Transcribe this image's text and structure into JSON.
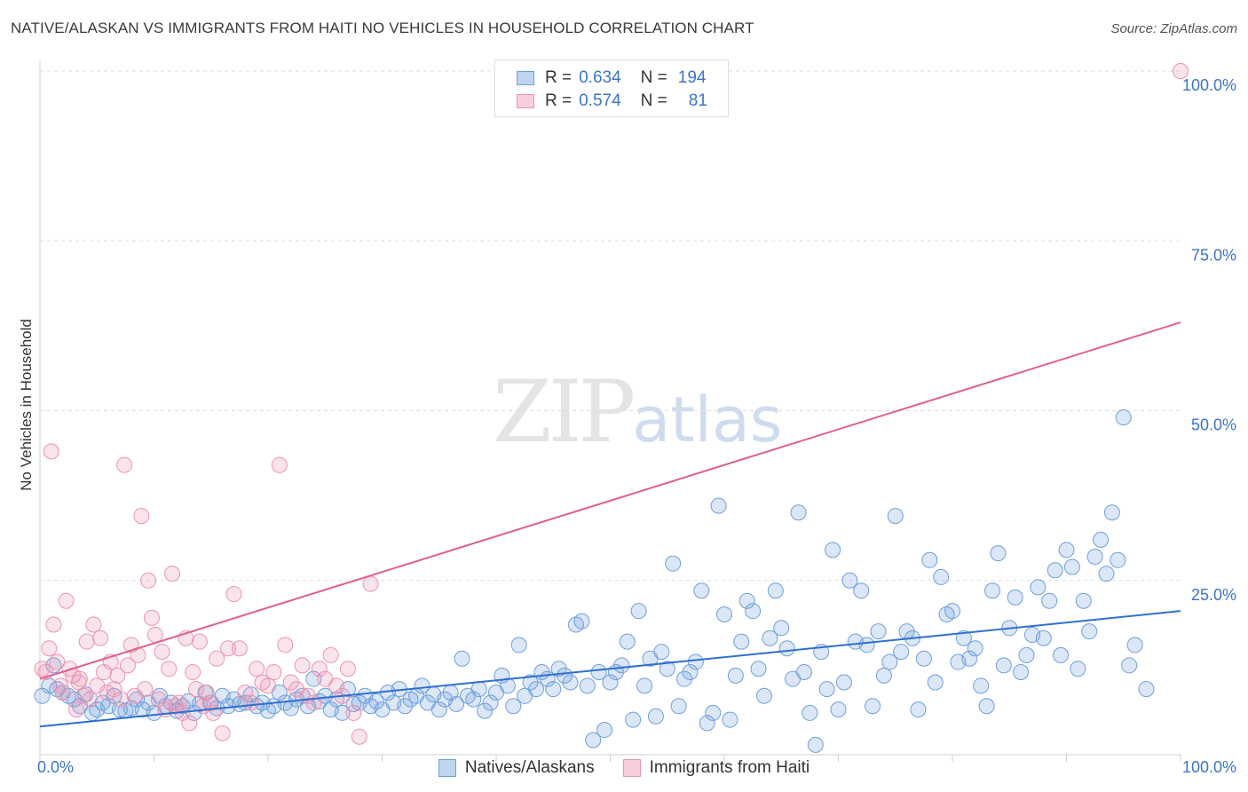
{
  "header": {
    "title": "NATIVE/ALASKAN VS IMMIGRANTS FROM HAITI NO VEHICLES IN HOUSEHOLD CORRELATION CHART",
    "source": "Source: ZipAtlas.com"
  },
  "watermark": {
    "zip": "ZIP",
    "atlas": "atlas"
  },
  "legend": {
    "rows": [
      {
        "r_label": "R =",
        "r_value": "0.634",
        "n_label": "N =",
        "n_value": "194"
      },
      {
        "r_label": "R =",
        "r_value": "0.574",
        "n_label": "N =",
        "n_value": "81"
      }
    ]
  },
  "chart_data": {
    "type": "scatter",
    "xlabel": "",
    "ylabel": "No Vehicles in Household",
    "xlim": [
      0,
      100
    ],
    "ylim": [
      0,
      100
    ],
    "x_tick_labels": [
      "0.0%",
      "100.0%"
    ],
    "y_tick_labels": [
      "25.0%",
      "50.0%",
      "75.0%",
      "100.0%"
    ],
    "y_ticks": [
      25,
      50,
      75,
      100
    ],
    "grid": true,
    "legend_placement": "top-center and bottom",
    "series": [
      {
        "name": "Natives/Alaskans",
        "color": "#6f9fdc",
        "fill": "rgba(111,159,220,0.25)",
        "line_color": "#2f6fd1",
        "trend": {
          "x": [
            0,
            100
          ],
          "y": [
            3.5,
            20.5
          ]
        },
        "points": [
          [
            0.2,
            8.0
          ],
          [
            0.8,
            9.5
          ],
          [
            1.2,
            12.5
          ],
          [
            1.5,
            9.0
          ],
          [
            2.0,
            8.5
          ],
          [
            2.5,
            8.0
          ],
          [
            3.0,
            7.5
          ],
          [
            3.5,
            6.5
          ],
          [
            4.0,
            8.2
          ],
          [
            4.6,
            5.5
          ],
          [
            5.0,
            6.0
          ],
          [
            5.5,
            7.0
          ],
          [
            6.0,
            6.5
          ],
          [
            6.5,
            8.0
          ],
          [
            7.0,
            6.0
          ],
          [
            7.5,
            5.8
          ],
          [
            8.0,
            6.2
          ],
          [
            8.5,
            7.5
          ],
          [
            9.0,
            6.0
          ],
          [
            9.5,
            7.0
          ],
          [
            10.0,
            5.5
          ],
          [
            10.5,
            8.0
          ],
          [
            11.0,
            6.5
          ],
          [
            11.5,
            7.0
          ],
          [
            12.0,
            5.8
          ],
          [
            12.5,
            6.5
          ],
          [
            13.0,
            7.2
          ],
          [
            13.5,
            5.5
          ],
          [
            14.0,
            6.8
          ],
          [
            14.5,
            8.5
          ],
          [
            15.0,
            7.0
          ],
          [
            15.5,
            6.2
          ],
          [
            16.0,
            8.0
          ],
          [
            16.5,
            6.5
          ],
          [
            17.0,
            7.5
          ],
          [
            17.5,
            6.8
          ],
          [
            18.0,
            7.0
          ],
          [
            18.5,
            8.2
          ],
          [
            19.0,
            6.5
          ],
          [
            19.5,
            7.0
          ],
          [
            20.0,
            5.8
          ],
          [
            20.5,
            6.5
          ],
          [
            21.0,
            8.5
          ],
          [
            21.5,
            7.0
          ],
          [
            22.0,
            6.2
          ],
          [
            22.5,
            7.5
          ],
          [
            23.0,
            8.0
          ],
          [
            23.5,
            6.5
          ],
          [
            24.0,
            10.5
          ],
          [
            24.5,
            7.2
          ],
          [
            25.0,
            8.0
          ],
          [
            25.5,
            6.0
          ],
          [
            26.0,
            7.5
          ],
          [
            26.5,
            5.5
          ],
          [
            27.0,
            9.0
          ],
          [
            27.5,
            6.8
          ],
          [
            28.0,
            7.0
          ],
          [
            28.5,
            8.0
          ],
          [
            29.0,
            6.5
          ],
          [
            29.5,
            7.2
          ],
          [
            30.0,
            6.0
          ],
          [
            30.5,
            8.5
          ],
          [
            31.0,
            7.0
          ],
          [
            31.5,
            9.0
          ],
          [
            32.0,
            6.5
          ],
          [
            32.5,
            7.5
          ],
          [
            33.0,
            8.0
          ],
          [
            33.5,
            9.5
          ],
          [
            34.0,
            7.0
          ],
          [
            34.5,
            8.2
          ],
          [
            35.0,
            6.0
          ],
          [
            35.5,
            7.5
          ],
          [
            36.0,
            8.5
          ],
          [
            36.5,
            6.8
          ],
          [
            37.0,
            13.5
          ],
          [
            37.5,
            8.0
          ],
          [
            38.0,
            7.5
          ],
          [
            38.5,
            9.0
          ],
          [
            39.0,
            5.8
          ],
          [
            39.5,
            7.0
          ],
          [
            40.0,
            8.5
          ],
          [
            40.5,
            11.0
          ],
          [
            41.0,
            9.5
          ],
          [
            41.5,
            6.5
          ],
          [
            42.0,
            15.5
          ],
          [
            42.5,
            8.0
          ],
          [
            43.0,
            10.0
          ],
          [
            43.5,
            9.0
          ],
          [
            44.0,
            11.5
          ],
          [
            44.5,
            10.5
          ],
          [
            45.0,
            9.0
          ],
          [
            45.5,
            12.0
          ],
          [
            46.0,
            11.0
          ],
          [
            46.5,
            10.0
          ],
          [
            47.0,
            18.5
          ],
          [
            47.5,
            19.0
          ],
          [
            48.0,
            9.5
          ],
          [
            48.5,
            1.5
          ],
          [
            49.0,
            11.5
          ],
          [
            49.5,
            3.0
          ],
          [
            50.0,
            10.0
          ],
          [
            50.5,
            11.5
          ],
          [
            51.0,
            12.5
          ],
          [
            51.5,
            16.0
          ],
          [
            52.0,
            4.5
          ],
          [
            52.5,
            20.5
          ],
          [
            53.0,
            9.5
          ],
          [
            53.5,
            13.5
          ],
          [
            54.0,
            5.0
          ],
          [
            54.5,
            14.5
          ],
          [
            55.0,
            12.0
          ],
          [
            55.5,
            27.5
          ],
          [
            56.0,
            6.5
          ],
          [
            56.5,
            10.5
          ],
          [
            57.0,
            11.5
          ],
          [
            57.5,
            13.0
          ],
          [
            58.0,
            23.5
          ],
          [
            58.5,
            4.0
          ],
          [
            59.0,
            5.5
          ],
          [
            59.5,
            36.0
          ],
          [
            60.0,
            20.0
          ],
          [
            60.5,
            4.5
          ],
          [
            61.0,
            11.0
          ],
          [
            61.5,
            16.0
          ],
          [
            62.0,
            22.0
          ],
          [
            62.5,
            20.5
          ],
          [
            63.0,
            12.0
          ],
          [
            63.5,
            8.0
          ],
          [
            64.0,
            16.5
          ],
          [
            64.5,
            23.5
          ],
          [
            65.0,
            18.0
          ],
          [
            65.5,
            15.0
          ],
          [
            66.0,
            10.5
          ],
          [
            66.5,
            35.0
          ],
          [
            67.0,
            11.5
          ],
          [
            67.5,
            5.5
          ],
          [
            68.0,
            0.8
          ],
          [
            68.5,
            14.5
          ],
          [
            69.0,
            9.0
          ],
          [
            69.5,
            29.5
          ],
          [
            70.0,
            6.0
          ],
          [
            70.5,
            10.0
          ],
          [
            71.0,
            25.0
          ],
          [
            71.5,
            16.0
          ],
          [
            72.0,
            23.5
          ],
          [
            72.5,
            15.5
          ],
          [
            73.0,
            6.5
          ],
          [
            73.5,
            17.5
          ],
          [
            74.0,
            11.0
          ],
          [
            74.5,
            13.0
          ],
          [
            75.0,
            34.5
          ],
          [
            75.5,
            14.5
          ],
          [
            76.0,
            17.5
          ],
          [
            76.5,
            16.5
          ],
          [
            77.0,
            6.0
          ],
          [
            77.5,
            13.5
          ],
          [
            78.0,
            28.0
          ],
          [
            78.5,
            10.0
          ],
          [
            79.0,
            25.5
          ],
          [
            79.5,
            20.0
          ],
          [
            80.0,
            20.5
          ],
          [
            80.5,
            13.0
          ],
          [
            81.0,
            16.5
          ],
          [
            81.5,
            13.5
          ],
          [
            82.0,
            15.0
          ],
          [
            82.5,
            9.5
          ],
          [
            83.0,
            6.5
          ],
          [
            83.5,
            23.5
          ],
          [
            84.0,
            29.0
          ],
          [
            84.5,
            12.5
          ],
          [
            85.0,
            18.0
          ],
          [
            85.5,
            22.5
          ],
          [
            86.0,
            11.5
          ],
          [
            86.5,
            14.0
          ],
          [
            87.0,
            17.0
          ],
          [
            87.5,
            24.0
          ],
          [
            88.0,
            16.5
          ],
          [
            88.5,
            22.0
          ],
          [
            89.0,
            26.5
          ],
          [
            89.5,
            14.0
          ],
          [
            90.0,
            29.5
          ],
          [
            90.5,
            27.0
          ],
          [
            91.0,
            12.0
          ],
          [
            91.5,
            22.0
          ],
          [
            92.0,
            17.5
          ],
          [
            92.5,
            28.5
          ],
          [
            93.0,
            31.0
          ],
          [
            93.5,
            26.0
          ],
          [
            94.0,
            35.0
          ],
          [
            94.5,
            28.0
          ],
          [
            95.0,
            49.0
          ],
          [
            95.5,
            12.5
          ],
          [
            96.0,
            15.5
          ],
          [
            97.0,
            9.0
          ]
        ]
      },
      {
        "name": "Immigrants from Haiti",
        "color": "#ec93b1",
        "fill": "rgba(236,147,177,0.25)",
        "line_color": "#e0608c",
        "trend": {
          "x": [
            0,
            100
          ],
          "y": [
            10.5,
            63.0
          ]
        },
        "points": [
          [
            0.2,
            12.0
          ],
          [
            0.5,
            11.5
          ],
          [
            0.8,
            15.0
          ],
          [
            1.0,
            44.0
          ],
          [
            1.2,
            18.5
          ],
          [
            1.5,
            13.0
          ],
          [
            1.8,
            9.5
          ],
          [
            2.0,
            8.5
          ],
          [
            2.3,
            22.0
          ],
          [
            2.6,
            12.0
          ],
          [
            2.9,
            11.0
          ],
          [
            3.2,
            6.0
          ],
          [
            3.5,
            10.5
          ],
          [
            3.8,
            8.0
          ],
          [
            4.1,
            16.0
          ],
          [
            4.4,
            7.5
          ],
          [
            4.7,
            18.5
          ],
          [
            5.0,
            9.5
          ],
          [
            5.3,
            16.5
          ],
          [
            5.6,
            11.5
          ],
          [
            5.9,
            8.5
          ],
          [
            6.2,
            13.0
          ],
          [
            6.5,
            9.0
          ],
          [
            6.8,
            11.0
          ],
          [
            7.1,
            7.5
          ],
          [
            7.4,
            42.0
          ],
          [
            7.7,
            12.5
          ],
          [
            8.0,
            15.5
          ],
          [
            8.3,
            8.0
          ],
          [
            8.6,
            14.0
          ],
          [
            8.9,
            34.5
          ],
          [
            9.2,
            9.0
          ],
          [
            9.5,
            25.0
          ],
          [
            9.8,
            19.5
          ],
          [
            10.1,
            17.0
          ],
          [
            10.4,
            7.5
          ],
          [
            10.7,
            14.5
          ],
          [
            11.0,
            6.0
          ],
          [
            11.3,
            12.0
          ],
          [
            11.6,
            26.0
          ],
          [
            11.9,
            6.5
          ],
          [
            12.2,
            7.0
          ],
          [
            12.5,
            5.5
          ],
          [
            12.8,
            16.5
          ],
          [
            13.1,
            4.0
          ],
          [
            13.4,
            11.5
          ],
          [
            13.7,
            9.0
          ],
          [
            14.0,
            16.0
          ],
          [
            14.3,
            6.5
          ],
          [
            14.6,
            8.5
          ],
          [
            14.9,
            7.0
          ],
          [
            15.2,
            5.5
          ],
          [
            15.5,
            13.5
          ],
          [
            16.0,
            2.5
          ],
          [
            16.5,
            15.0
          ],
          [
            17.0,
            23.0
          ],
          [
            17.5,
            15.0
          ],
          [
            18.0,
            8.5
          ],
          [
            18.5,
            7.0
          ],
          [
            19.0,
            12.0
          ],
          [
            19.5,
            10.0
          ],
          [
            20.0,
            9.5
          ],
          [
            20.5,
            11.5
          ],
          [
            21.0,
            42.0
          ],
          [
            21.5,
            15.5
          ],
          [
            22.0,
            10.0
          ],
          [
            22.5,
            9.0
          ],
          [
            23.0,
            12.5
          ],
          [
            23.5,
            8.0
          ],
          [
            24.0,
            7.0
          ],
          [
            24.5,
            12.0
          ],
          [
            25.0,
            10.5
          ],
          [
            25.5,
            14.0
          ],
          [
            26.0,
            9.5
          ],
          [
            26.5,
            8.0
          ],
          [
            27.0,
            12.0
          ],
          [
            27.5,
            5.5
          ],
          [
            28.0,
            2.0
          ],
          [
            29.0,
            24.5
          ],
          [
            3.4,
            10.0
          ],
          [
            100.0,
            100.0
          ]
        ]
      }
    ]
  }
}
